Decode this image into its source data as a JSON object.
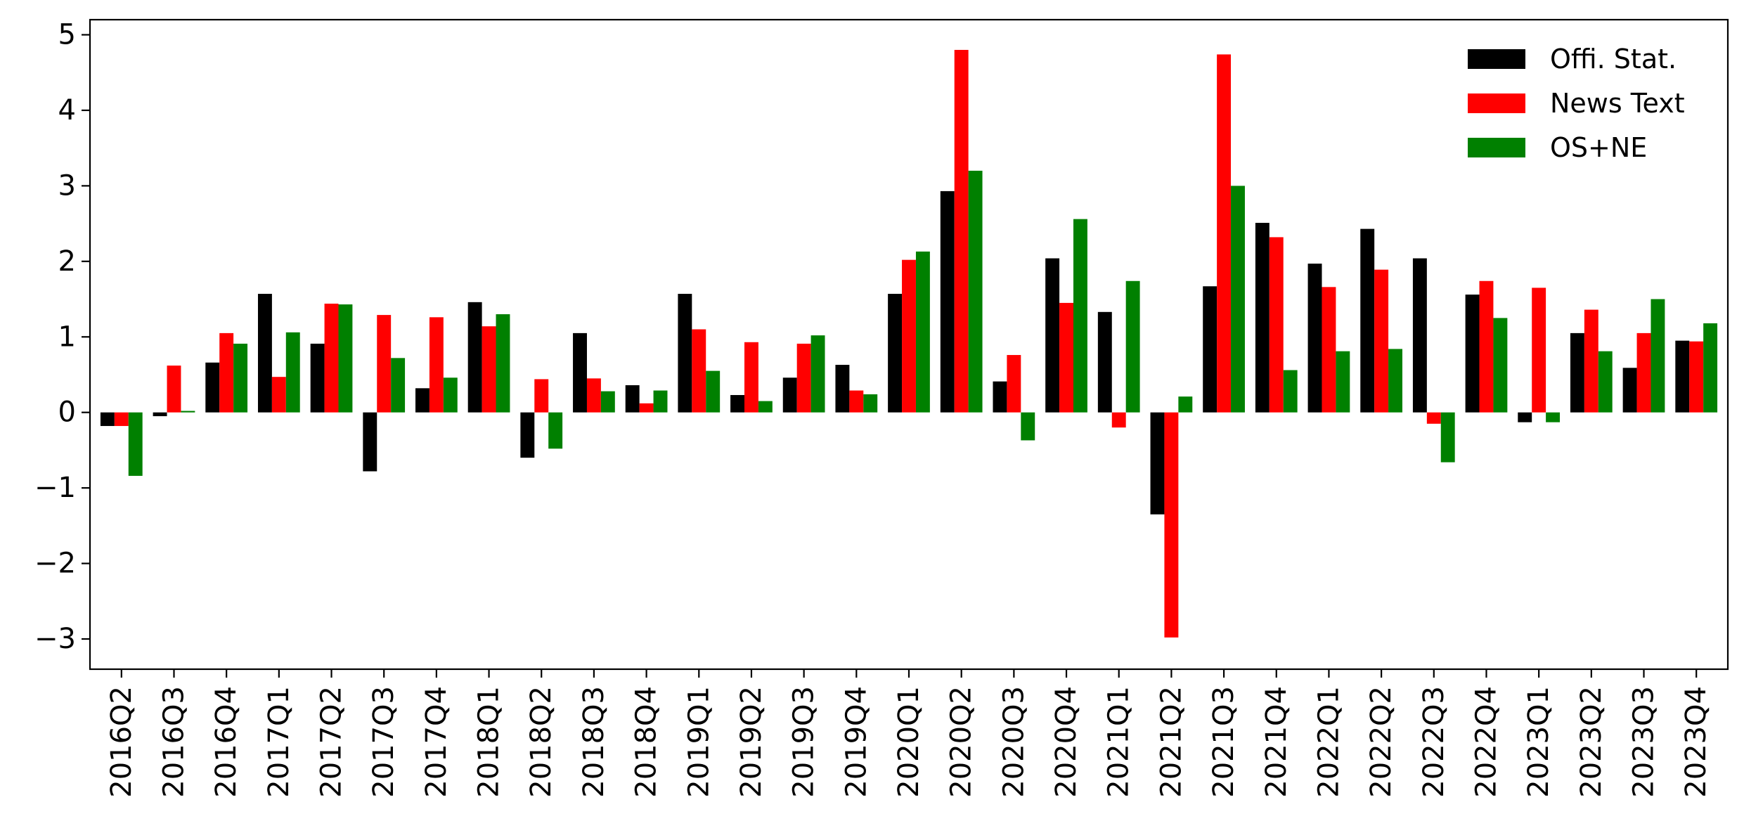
{
  "chart_data": {
    "type": "bar",
    "categories": [
      "2016Q2",
      "2016Q3",
      "2016Q4",
      "2017Q1",
      "2017Q2",
      "2017Q3",
      "2017Q4",
      "2018Q1",
      "2018Q2",
      "2018Q3",
      "2018Q4",
      "2019Q1",
      "2019Q2",
      "2019Q3",
      "2019Q4",
      "2020Q1",
      "2020Q2",
      "2020Q3",
      "2020Q4",
      "2021Q1",
      "2021Q2",
      "2021Q3",
      "2021Q4",
      "2022Q1",
      "2022Q2",
      "2022Q3",
      "2022Q4",
      "2023Q1",
      "2023Q2",
      "2023Q3",
      "2023Q4"
    ],
    "series": [
      {
        "name": "Offi. Stat.",
        "color": "#000000",
        "values": [
          -0.18,
          -0.05,
          0.66,
          1.57,
          0.91,
          -0.78,
          0.32,
          1.46,
          -0.6,
          1.05,
          0.36,
          1.57,
          0.23,
          0.46,
          0.63,
          1.57,
          2.93,
          0.41,
          2.04,
          1.33,
          -1.35,
          1.67,
          2.51,
          1.97,
          2.43,
          2.04,
          1.56,
          -0.13,
          1.05,
          0.59,
          0.95
        ]
      },
      {
        "name": "News Text",
        "color": "#ff0000",
        "values": [
          -0.18,
          0.62,
          1.05,
          0.47,
          1.44,
          1.29,
          1.26,
          1.14,
          0.44,
          0.45,
          0.12,
          1.1,
          0.93,
          0.91,
          0.29,
          2.02,
          4.8,
          0.76,
          1.45,
          -0.2,
          -2.98,
          4.74,
          2.32,
          1.66,
          1.89,
          -0.15,
          1.74,
          1.65,
          1.36,
          1.05,
          0.94
        ]
      },
      {
        "name": "OS+NE",
        "color": "#008000",
        "values": [
          -0.84,
          0.02,
          0.91,
          1.06,
          1.43,
          0.72,
          0.46,
          1.3,
          -0.48,
          0.28,
          0.29,
          0.55,
          0.15,
          1.02,
          0.24,
          2.13,
          3.2,
          -0.37,
          2.56,
          1.74,
          0.21,
          3.0,
          0.56,
          0.81,
          0.84,
          -0.66,
          1.25,
          -0.13,
          0.81,
          1.5,
          1.18
        ]
      }
    ],
    "ylim": [
      -3.4,
      5.2
    ],
    "yticks": [
      -3,
      -2,
      -1,
      0,
      1,
      2,
      3,
      4,
      5
    ],
    "ytick_labels": [
      "−3",
      "−2",
      "−1",
      "0",
      "1",
      "2",
      "3",
      "4",
      "5"
    ],
    "xlabel": "",
    "ylabel": "",
    "title": "",
    "grid": false,
    "legend_position": "top-right"
  }
}
